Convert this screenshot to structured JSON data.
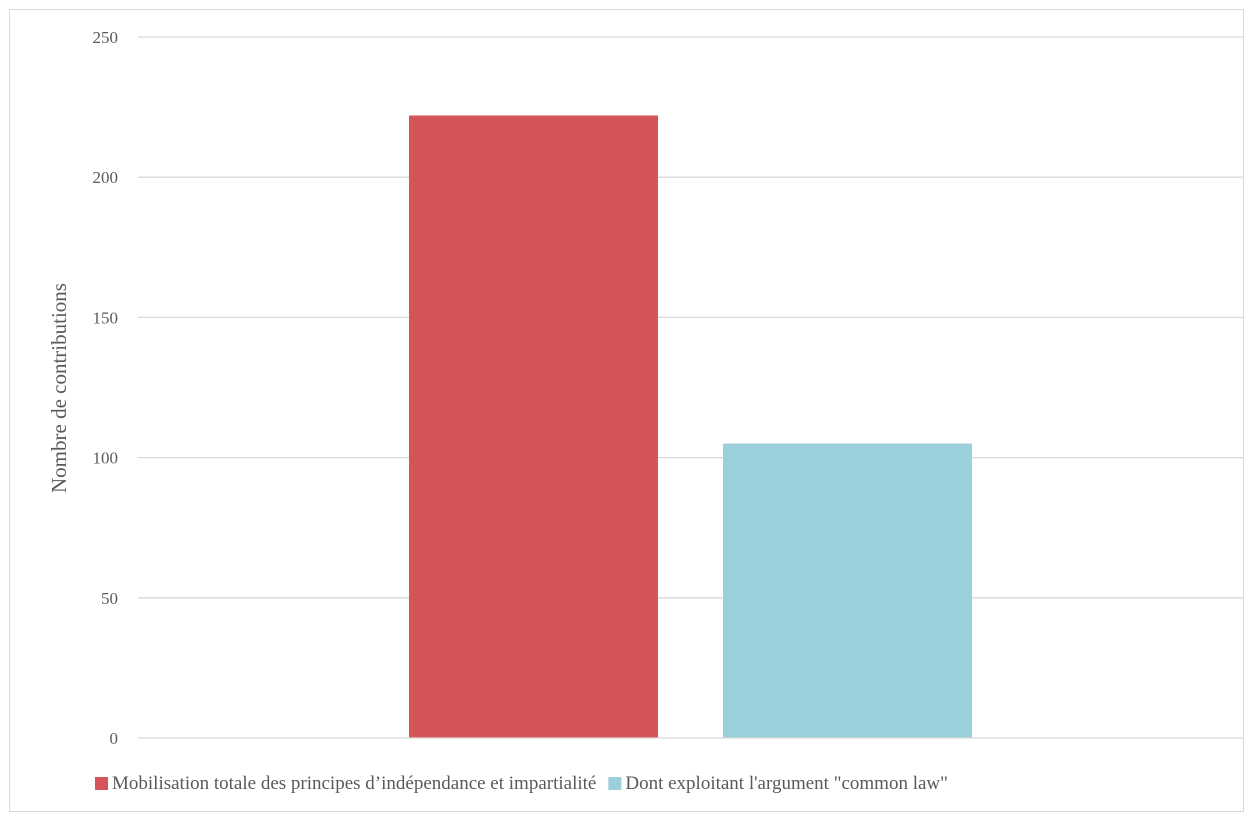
{
  "chart_data": {
    "type": "bar",
    "title": "",
    "xlabel": "",
    "ylabel": "Nombre de contributions",
    "ylim": [
      0,
      250
    ],
    "yticks": [
      0,
      50,
      100,
      150,
      200,
      250
    ],
    "grid": true,
    "legend_position": "bottom",
    "series": [
      {
        "name": "Mobilisation totale des principes d’indépendance et impartialité",
        "values": [
          222
        ],
        "color": "#d55458"
      },
      {
        "name": "Dont exploitant l'argument \"common law\"",
        "values": [
          105
        ],
        "color": "#9acfdb"
      }
    ]
  }
}
